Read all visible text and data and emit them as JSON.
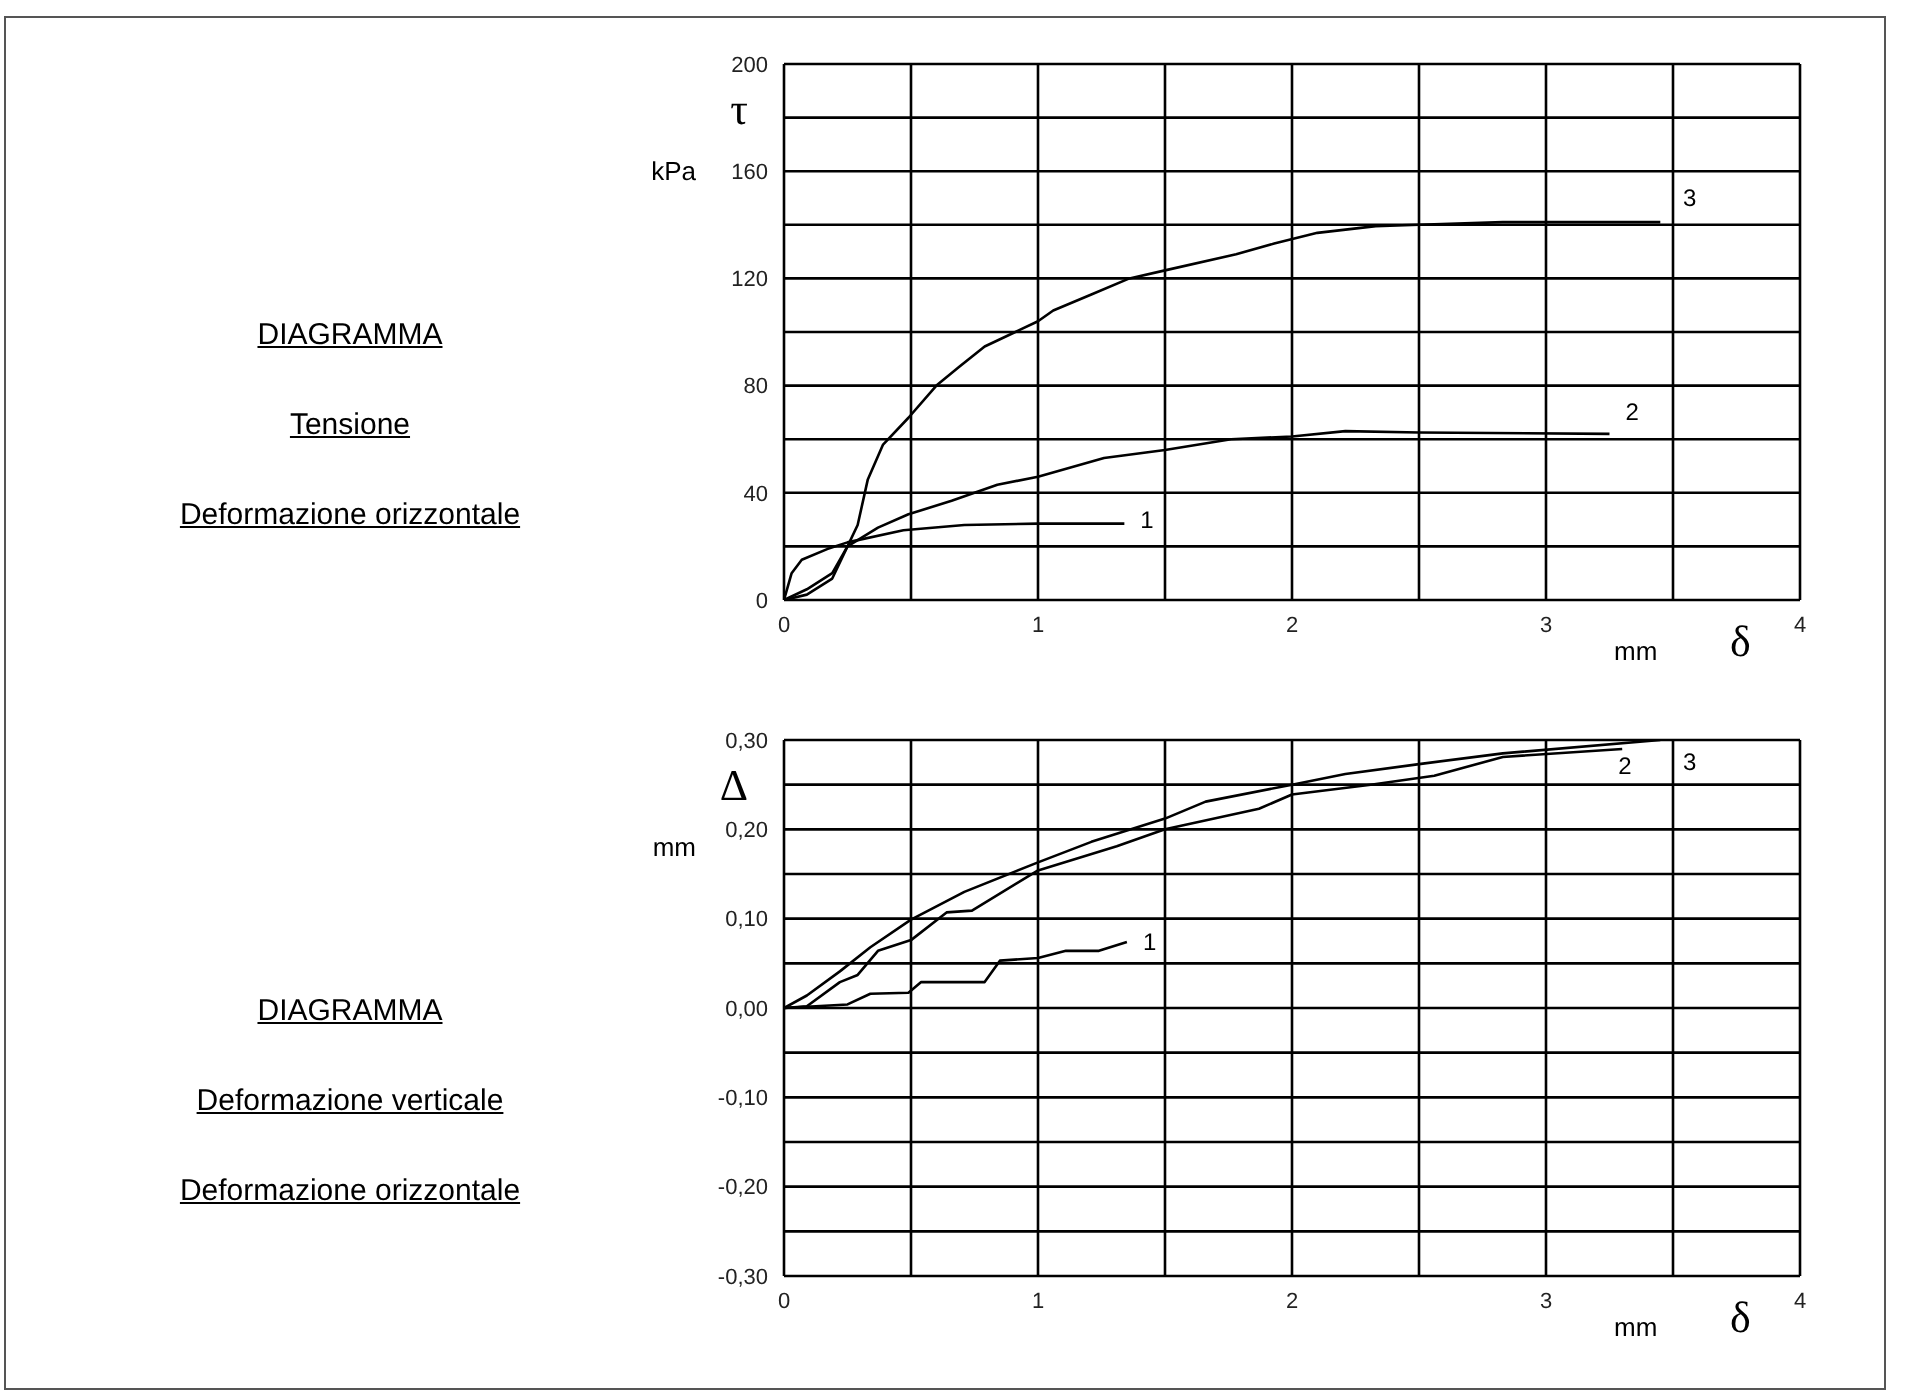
{
  "chart_data": [
    {
      "type": "line",
      "annotations": [
        "DIAGRAMMA",
        "Tensione",
        "Deformazione orizzontale"
      ],
      "ylabel": "τ\nkPa",
      "xlabel": "mm\nδ",
      "grid": true,
      "xlim": [
        0,
        4
      ],
      "ylim": [
        0,
        200
      ],
      "xticks": [
        0,
        {
          "value": 0.5,
          "label": null
        },
        1,
        {
          "value": 1.5,
          "label": null
        },
        2,
        {
          "value": 2.5,
          "label": null
        },
        3,
        {
          "value": 3.5,
          "label": null
        },
        4
      ],
      "yticks": [
        0,
        {
          "value": 20,
          "label": null
        },
        40,
        {
          "value": 60,
          "label": null
        },
        80,
        {
          "value": 100,
          "label": null
        },
        120,
        {
          "value": 140,
          "label": null
        },
        160,
        {
          "value": 180,
          "label": null
        },
        200
      ],
      "series": [
        {
          "name": "1",
          "color": "#000000",
          "x": [
            0,
            0.03,
            0.07,
            0.17,
            0.25,
            0.47,
            0.71,
            1.0,
            1.34
          ],
          "values": [
            0,
            10,
            15,
            19,
            21.5,
            26,
            28,
            28.5,
            28.5
          ]
        },
        {
          "name": "2",
          "color": "#000000",
          "x": [
            0,
            0.09,
            0.19,
            0.25,
            0.37,
            0.49,
            0.66,
            0.84,
            1.0,
            1.26,
            1.5,
            1.76,
            2.0,
            2.21,
            2.5,
            3.25
          ],
          "values": [
            0,
            4,
            10,
            20,
            27,
            32,
            37,
            43,
            46,
            53,
            56,
            60,
            61,
            63,
            62.5,
            62
          ]
        },
        {
          "name": "3",
          "color": "#000000",
          "x": [
            0,
            0.09,
            0.19,
            0.25,
            0.29,
            0.33,
            0.39,
            0.49,
            0.6,
            0.69,
            0.79,
            1.0,
            1.06,
            1.21,
            1.36,
            1.5,
            1.78,
            1.93,
            2.1,
            2.33,
            2.5,
            2.83,
            3.45
          ],
          "values": [
            0,
            2,
            8,
            20,
            28,
            45,
            58,
            68,
            80,
            87,
            94.6,
            104,
            108,
            114,
            120,
            123,
            129,
            133,
            137,
            139.5,
            140,
            141,
            141
          ]
        }
      ]
    },
    {
      "type": "line",
      "annotations": [
        "DIAGRAMMA",
        "Deformazione verticale",
        "Deformazione orizzontale"
      ],
      "ylabel": "Δ\nmm",
      "xlabel": "mm\nδ",
      "grid": true,
      "xlim": [
        0,
        4
      ],
      "ylim": [
        -0.3,
        0.3
      ],
      "xticks": [
        0,
        {
          "value": 0.5,
          "label": null
        },
        1,
        {
          "value": 1.5,
          "label": null
        },
        2,
        {
          "value": 2.5,
          "label": null
        },
        3,
        {
          "value": 3.5,
          "label": null
        },
        4
      ],
      "yticks": [
        {
          "value": -0.3,
          "label": "-0,30"
        },
        {
          "value": -0.25,
          "label": null
        },
        {
          "value": -0.2,
          "label": "-0,20"
        },
        {
          "value": -0.15,
          "label": null
        },
        {
          "value": -0.1,
          "label": "-0,10"
        },
        {
          "value": -0.05,
          "label": null
        },
        {
          "value": 0,
          "label": "0,00"
        },
        {
          "value": 0.05,
          "label": null
        },
        {
          "value": 0.1,
          "label": "0,10"
        },
        {
          "value": 0.15,
          "label": null
        },
        {
          "value": 0.2,
          "label": "0,20"
        },
        {
          "value": 0.25,
          "label": null
        },
        {
          "value": 0.3,
          "label": "0,30"
        }
      ],
      "series": [
        {
          "name": "1",
          "color": "#000000",
          "x": [
            0,
            0.25,
            0.34,
            0.49,
            0.54,
            0.79,
            0.85,
            1.0,
            1.11,
            1.24,
            1.35
          ],
          "values": [
            0,
            0.004,
            0.016,
            0.017,
            0.029,
            0.029,
            0.053,
            0.056,
            0.064,
            0.064,
            0.074
          ]
        },
        {
          "name": "2",
          "color": "#000000",
          "x": [
            0,
            0.09,
            0.22,
            0.29,
            0.37,
            0.5,
            0.64,
            0.74,
            1.0,
            1.31,
            1.5,
            1.87,
            2.0,
            2.31,
            2.56,
            2.83,
            3.3
          ],
          "values": [
            0,
            0.002,
            0.029,
            0.037,
            0.064,
            0.076,
            0.107,
            0.109,
            0.154,
            0.181,
            0.2,
            0.223,
            0.239,
            0.25,
            0.26,
            0.281,
            0.29
          ]
        },
        {
          "name": "3",
          "color": "#000000",
          "x": [
            0,
            0.09,
            0.22,
            0.34,
            0.5,
            0.71,
            1.0,
            1.21,
            1.5,
            1.66,
            2.0,
            2.21,
            2.5,
            2.83,
            3.45
          ],
          "values": [
            0,
            0.014,
            0.041,
            0.068,
            0.099,
            0.13,
            0.163,
            0.186,
            0.212,
            0.231,
            0.25,
            0.262,
            0.273,
            0.285,
            0.3
          ]
        }
      ]
    }
  ]
}
